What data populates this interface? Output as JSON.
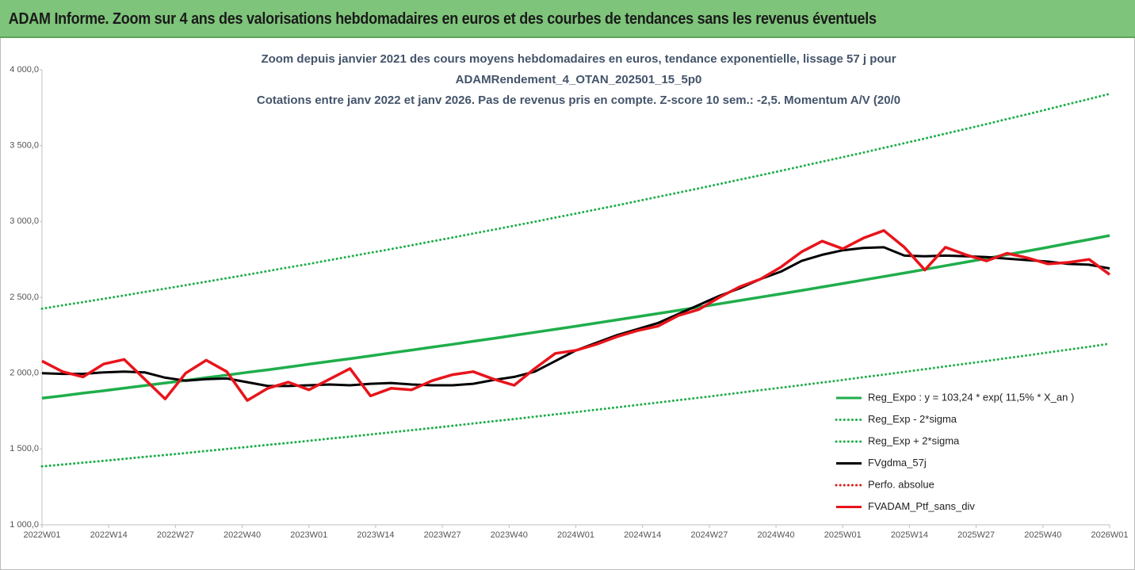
{
  "header": {
    "title": "ADAM Informe. Zoom sur 4 ans des valorisations hebdomadaires en euros et des courbes de tendances sans les revenus éventuels"
  },
  "chart_data": {
    "type": "line",
    "title": [
      "Zoom depuis janvier 2021 des cours moyens hebdomadaires  en euros, tendance exponentielle, lissage 57 j pour",
      "ADAMRendement_4_OTAN_202501_15_5p0",
      "Cotations entre janv 2022 et janv 2026. Pas de revenus pris en compte. Z-score 10 sem.: -2,5. Momentum A/V (20/0"
    ],
    "x": [
      0,
      4,
      8,
      12,
      16,
      20,
      24,
      28,
      32,
      36,
      40,
      44,
      48,
      52,
      56,
      60,
      64,
      68,
      72,
      76,
      80,
      84,
      88,
      92,
      96,
      100,
      104,
      108,
      112,
      116,
      120,
      124,
      128,
      132,
      136,
      140,
      144,
      148,
      152,
      156,
      160,
      164,
      168,
      172,
      176,
      180,
      184,
      188,
      192,
      196,
      200,
      204,
      208
    ],
    "xlim": [
      0,
      208
    ],
    "xticks": [
      {
        "value": 0,
        "label": "2022W01"
      },
      {
        "value": 13,
        "label": "2022W14"
      },
      {
        "value": 26,
        "label": "2022W27"
      },
      {
        "value": 39,
        "label": "2022W40"
      },
      {
        "value": 52,
        "label": "2023W01"
      },
      {
        "value": 65,
        "label": "2023W14"
      },
      {
        "value": 78,
        "label": "2023W27"
      },
      {
        "value": 91,
        "label": "2023W40"
      },
      {
        "value": 104,
        "label": "2024W01"
      },
      {
        "value": 117,
        "label": "2024W14"
      },
      {
        "value": 130,
        "label": "2024W27"
      },
      {
        "value": 143,
        "label": "2024W40"
      },
      {
        "value": 156,
        "label": "2025W01"
      },
      {
        "value": 169,
        "label": "2025W14"
      },
      {
        "value": 182,
        "label": "2025W27"
      },
      {
        "value": 195,
        "label": "2025W40"
      },
      {
        "value": 208,
        "label": "2026W01"
      }
    ],
    "ylim": [
      1000,
      4000
    ],
    "yticks": [
      {
        "value": 1000,
        "label": "1 000,0"
      },
      {
        "value": 1500,
        "label": "1 500,0"
      },
      {
        "value": 2000,
        "label": "2 000,0"
      },
      {
        "value": 2500,
        "label": "2 500,0"
      },
      {
        "value": 3000,
        "label": "3 000,0"
      },
      {
        "value": 3500,
        "label": "3 500,0"
      },
      {
        "value": 4000,
        "label": "4 000,0"
      }
    ],
    "grid": false,
    "legend": "lower right",
    "series": [
      {
        "name": "Reg_Expo : y = 103,24 * exp( 11,5% *  X_an )",
        "color": "#1fae4b",
        "style": "solid",
        "values": [
          1835,
          1851,
          1868,
          1884,
          1901,
          1918,
          1935,
          1952,
          1970,
          1987,
          2005,
          2022,
          2040,
          2059,
          2077,
          2095,
          2114,
          2133,
          2152,
          2171,
          2190,
          2210,
          2229,
          2249,
          2269,
          2289,
          2309,
          2330,
          2351,
          2372,
          2393,
          2414,
          2435,
          2457,
          2479,
          2501,
          2523,
          2545,
          2568,
          2591,
          2614,
          2637,
          2660,
          2684,
          2708,
          2732,
          2756,
          2781,
          2805,
          2830,
          2856,
          2881,
          2907
        ]
      },
      {
        "name": "Reg_Exp - 2*sigma",
        "color": "#1fae4b",
        "style": "dotted",
        "values": [
          1385,
          1397,
          1410,
          1422,
          1435,
          1448,
          1460,
          1473,
          1487,
          1500,
          1513,
          1527,
          1540,
          1554,
          1568,
          1581,
          1596,
          1610,
          1624,
          1638,
          1653,
          1668,
          1683,
          1697,
          1713,
          1728,
          1743,
          1759,
          1774,
          1790,
          1806,
          1822,
          1838,
          1854,
          1871,
          1888,
          1904,
          1921,
          1938,
          1955,
          1973,
          1990,
          2008,
          2026,
          2044,
          2062,
          2080,
          2099,
          2117,
          2136,
          2155,
          2174,
          2194
        ]
      },
      {
        "name": "Reg_Exp + 2*sigma",
        "color": "#1fae4b",
        "style": "dotted",
        "values": [
          2425,
          2447,
          2468,
          2490,
          2512,
          2535,
          2557,
          2580,
          2603,
          2626,
          2649,
          2673,
          2697,
          2720,
          2745,
          2769,
          2794,
          2818,
          2843,
          2869,
          2894,
          2920,
          2946,
          2972,
          2998,
          3025,
          3052,
          3079,
          3106,
          3134,
          3162,
          3190,
          3218,
          3247,
          3276,
          3305,
          3334,
          3364,
          3394,
          3424,
          3454,
          3485,
          3516,
          3547,
          3579,
          3610,
          3642,
          3675,
          3707,
          3740,
          3774,
          3807,
          3841
        ]
      },
      {
        "name": "FVgdma_57j",
        "color": "#000000",
        "style": "solid",
        "values": [
          2000,
          1995,
          1995,
          2005,
          2010,
          2005,
          1970,
          1950,
          1960,
          1965,
          1940,
          1915,
          1915,
          1920,
          1925,
          1920,
          1930,
          1935,
          1925,
          1920,
          1920,
          1930,
          1955,
          1975,
          2010,
          2080,
          2150,
          2200,
          2250,
          2290,
          2330,
          2390,
          2450,
          2510,
          2560,
          2620,
          2670,
          2740,
          2780,
          2810,
          2825,
          2830,
          2775,
          2770,
          2775,
          2770,
          2765,
          2755,
          2745,
          2735,
          2720,
          2715,
          2690
        ]
      },
      {
        "name": "Perfo. absolue",
        "color": "#d9201c",
        "style": "dotted",
        "values": [
          null,
          null,
          null,
          null,
          null,
          null,
          null,
          null,
          null,
          null,
          null,
          null,
          null,
          null,
          null,
          null,
          null,
          null,
          null,
          null,
          null,
          null,
          null,
          null,
          null,
          null,
          null,
          null,
          null,
          null,
          null,
          null,
          null,
          null,
          null,
          null,
          null,
          null,
          null,
          null,
          null,
          null,
          null,
          null,
          null,
          null,
          null,
          null,
          null,
          null,
          null,
          null,
          null
        ]
      },
      {
        "name": "FVADAM_Ptf_sans_div",
        "color": "#e8141b",
        "style": "solid",
        "values": [
          2080,
          2010,
          1975,
          2060,
          2090,
          1960,
          1830,
          2000,
          2085,
          2010,
          1820,
          1900,
          1940,
          1890,
          1960,
          2030,
          1850,
          1900,
          1890,
          1950,
          1990,
          2010,
          1960,
          1920,
          2030,
          2130,
          2150,
          2190,
          2240,
          2280,
          2310,
          2380,
          2420,
          2500,
          2570,
          2620,
          2700,
          2800,
          2870,
          2820,
          2890,
          2940,
          2830,
          2680,
          2830,
          2780,
          2740,
          2790,
          2760,
          2720,
          2730,
          2750,
          2650
        ]
      }
    ]
  }
}
